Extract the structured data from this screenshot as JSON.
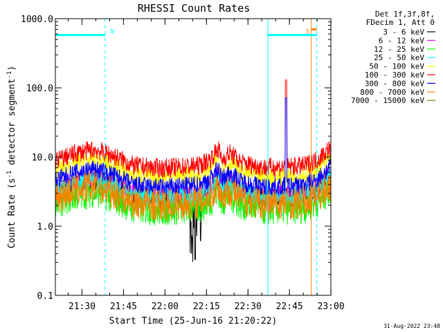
{
  "chart_data": {
    "type": "line",
    "title": "RHESSI Count Rates",
    "xlabel": "Start Time (25-Jun-16 21:20:22)",
    "ylabel": "Count Rate (s",
    "ylabel_sup": "-1",
    "ylabel_tail": " detector segment",
    "ylabel_sup2": "-1",
    "ylabel_close": ")",
    "y_scale": "log",
    "ylim": [
      0.1,
      1000
    ],
    "xlim_minutes": [
      0,
      99.6
    ],
    "x_ticks": [
      {
        "label": "21:30",
        "min": 9.63
      },
      {
        "label": "21:45",
        "min": 24.63
      },
      {
        "label": "22:00",
        "min": 39.63
      },
      {
        "label": "22:15",
        "min": 54.63
      },
      {
        "label": "22:30",
        "min": 69.63
      },
      {
        "label": "22:45",
        "min": 84.63
      },
      {
        "label": "23:00",
        "min": 99.63
      }
    ],
    "y_ticks": [
      {
        "label": "0.1",
        "value": 0.1
      },
      {
        "label": "1.0",
        "value": 1
      },
      {
        "label": "10.0",
        "value": 10
      },
      {
        "label": "100.0",
        "value": 100
      },
      {
        "label": "1000.0",
        "value": 1000
      }
    ],
    "legend_header": [
      "Det 1f,3f,8f,",
      "FDecim 1, Att 0"
    ],
    "legend_position": "right",
    "series": [
      {
        "name": "3 - 6 keV",
        "color": "#000000",
        "base": 3.2
      },
      {
        "name": "6 - 12 keV",
        "color": "#ff00ff",
        "base": 3.6
      },
      {
        "name": "12 - 25 keV",
        "color": "#00ff00",
        "base": 2.2
      },
      {
        "name": "25 - 50 keV",
        "color": "#00ffff",
        "base": 3.4
      },
      {
        "name": "50 - 100 keV",
        "color": "#ffff00",
        "base": 6.4
      },
      {
        "name": "100 - 300 keV",
        "color": "#ff0000",
        "base": 8.8
      },
      {
        "name": "300 - 800 keV",
        "color": "#0000ff",
        "base": 4.6
      },
      {
        "name": "800 - 7000 keV",
        "color": "#ff8000",
        "base": 2.6
      },
      {
        "name": "7000 - 15000 keV",
        "color": "#808000",
        "base": 0
      }
    ],
    "envelope": [
      {
        "min": 0,
        "f": 1.0
      },
      {
        "min": 8,
        "f": 1.3
      },
      {
        "min": 14,
        "f": 1.45
      },
      {
        "min": 20,
        "f": 1.22
      },
      {
        "min": 28,
        "f": 0.85
      },
      {
        "min": 38,
        "f": 0.78
      },
      {
        "min": 46,
        "f": 0.82
      },
      {
        "min": 52,
        "f": 0.85
      },
      {
        "min": 56,
        "f": 1.05
      },
      {
        "min": 59,
        "f": 1.5
      },
      {
        "min": 60,
        "f": 1.0
      },
      {
        "min": 63,
        "f": 1.3
      },
      {
        "min": 67,
        "f": 0.95
      },
      {
        "min": 75,
        "f": 0.8
      },
      {
        "min": 83,
        "f": 0.82
      },
      {
        "min": 90,
        "f": 0.85
      },
      {
        "min": 95,
        "f": 1.05
      },
      {
        "min": 99.6,
        "f": 1.55
      }
    ],
    "spike": {
      "min": 83.4,
      "value": 130
    },
    "dip": {
      "min": 50.5,
      "value": 0.33
    },
    "attenuator_bars": [
      {
        "label": "N",
        "start_min": 0,
        "end_min": 18.0,
        "value": 580,
        "color": "#00ffff"
      },
      {
        "label": "S",
        "start_min": 76.8,
        "end_min": 94.5,
        "value": 580,
        "color": "#00ffff"
      },
      {
        "label": "",
        "start_min": 92.5,
        "end_min": 94.5,
        "value": 700,
        "color": "#ff8000"
      }
    ],
    "event_lines": [
      {
        "min": 0.0,
        "style": "solid",
        "color": "#00ffff"
      },
      {
        "min": 18.0,
        "style": "dashed",
        "color": "#00ffff"
      },
      {
        "min": 76.8,
        "style": "solid",
        "color": "#00ffff"
      },
      {
        "min": 92.5,
        "style": "solid",
        "color": "#ff8000"
      },
      {
        "min": 94.5,
        "style": "dashed",
        "color": "#00ffff"
      }
    ],
    "timestamp": "31-Aug-2022 23:48"
  }
}
